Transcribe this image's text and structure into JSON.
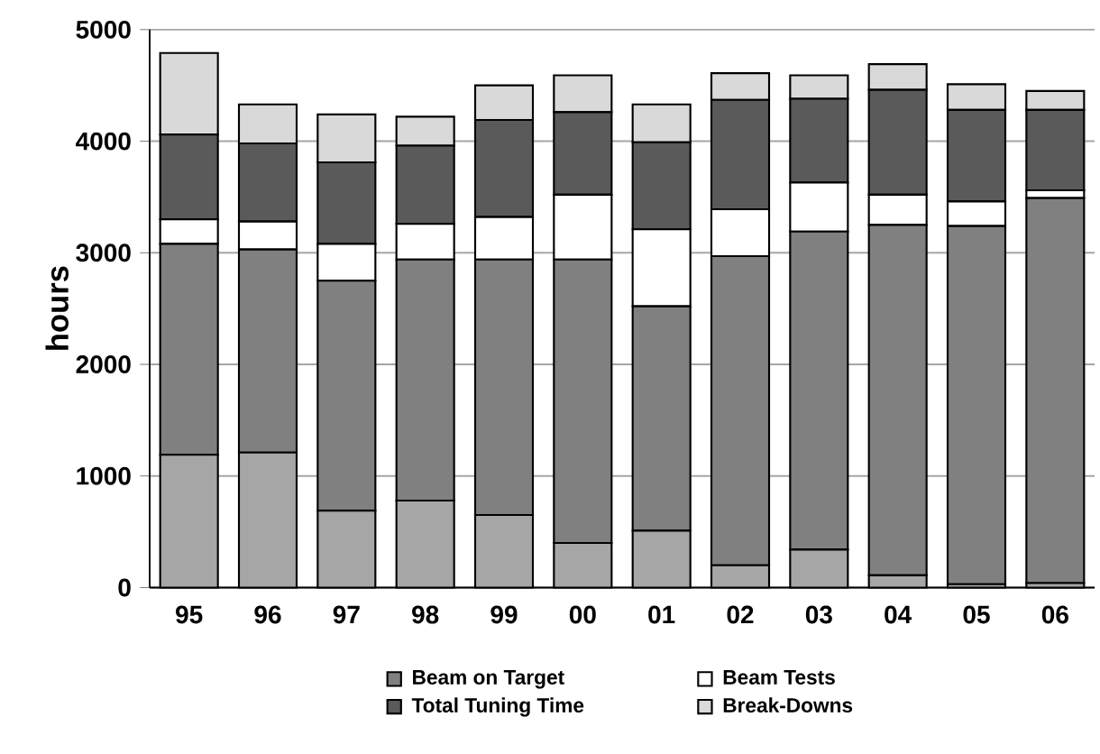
{
  "chart_data": {
    "type": "bar",
    "stacked": true,
    "ylabel": "hours",
    "categories": [
      "95",
      "96",
      "97",
      "98",
      "99",
      "00",
      "01",
      "02",
      "03",
      "04",
      "05",
      "06"
    ],
    "series": [
      {
        "color": "#a6a6a6",
        "values": [
          1190,
          1210,
          690,
          780,
          650,
          400,
          510,
          200,
          340,
          110,
          30,
          40
        ]
      },
      {
        "name": "Beam on Target",
        "color": "#808080",
        "values": [
          1890,
          1820,
          2060,
          2160,
          2290,
          2540,
          2010,
          2770,
          2850,
          3140,
          3210,
          3450
        ]
      },
      {
        "name": "Beam Tests",
        "color": "#ffffff",
        "values": [
          220,
          250,
          330,
          320,
          380,
          580,
          690,
          420,
          440,
          270,
          220,
          70
        ]
      },
      {
        "name": "Total Tuning Time",
        "color": "#5a5a5a",
        "values": [
          760,
          700,
          730,
          700,
          870,
          740,
          780,
          980,
          750,
          940,
          820,
          720
        ]
      },
      {
        "name": "Break-Downs",
        "color": "#d9d9d9",
        "values": [
          730,
          350,
          430,
          260,
          310,
          330,
          340,
          240,
          210,
          230,
          230,
          170
        ]
      }
    ],
    "ylim": [
      0,
      5000
    ],
    "yticks": [
      0,
      1000,
      2000,
      3000,
      4000,
      5000
    ],
    "grid": "y",
    "legend": "bottom"
  }
}
